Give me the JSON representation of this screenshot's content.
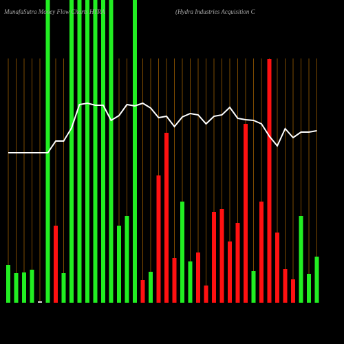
{
  "chart_data": {
    "type": "bar",
    "title": "MunafaSutra Money Flow Charts HYRA",
    "subtitle": "(Hydra Industries Acquisition C",
    "values": [
      55,
      43,
      44,
      48,
      2,
      440,
      112,
      43,
      440,
      440,
      440,
      440,
      440,
      440,
      112,
      126,
      440,
      33,
      45,
      185,
      247,
      65,
      147,
      60,
      73,
      25,
      132,
      136,
      89,
      116,
      260,
      46,
      147,
      354,
      102,
      49,
      34,
      126,
      42,
      67
    ],
    "bar_colors": [
      "#22ee22",
      "#22ee22",
      "#22ee22",
      "#22ee22",
      "#dddddd",
      "#22ee22",
      "#ff1111",
      "#22ee22",
      "#22ee22",
      "#22ee22",
      "#22ee22",
      "#22ee22",
      "#22ee22",
      "#22ee22",
      "#22ee22",
      "#22ee22",
      "#22ee22",
      "#ff1111",
      "#22ee22",
      "#ff1111",
      "#ff1111",
      "#ff1111",
      "#22ee22",
      "#22ee22",
      "#ff1111",
      "#ff1111",
      "#ff1111",
      "#ff1111",
      "#ff1111",
      "#ff1111",
      "#ff1111",
      "#22ee22",
      "#ff1111",
      "#ff1111",
      "#ff1111",
      "#ff1111",
      "#ff1111",
      "#22ee22",
      "#22ee22",
      "#22ee22"
    ],
    "line": {
      "color": "#ffffff",
      "values": [
        218,
        218,
        218,
        218,
        218,
        218,
        235,
        235,
        254,
        288,
        290,
        287,
        287,
        265,
        272,
        288,
        286,
        290,
        283,
        269,
        271,
        256,
        270,
        275,
        273,
        260,
        271,
        273,
        284,
        268,
        266,
        265,
        260,
        242,
        228,
        253,
        240,
        248,
        248,
        250
      ]
    },
    "ylim": [
      0,
      440
    ],
    "grid_color": "#b36b00"
  }
}
